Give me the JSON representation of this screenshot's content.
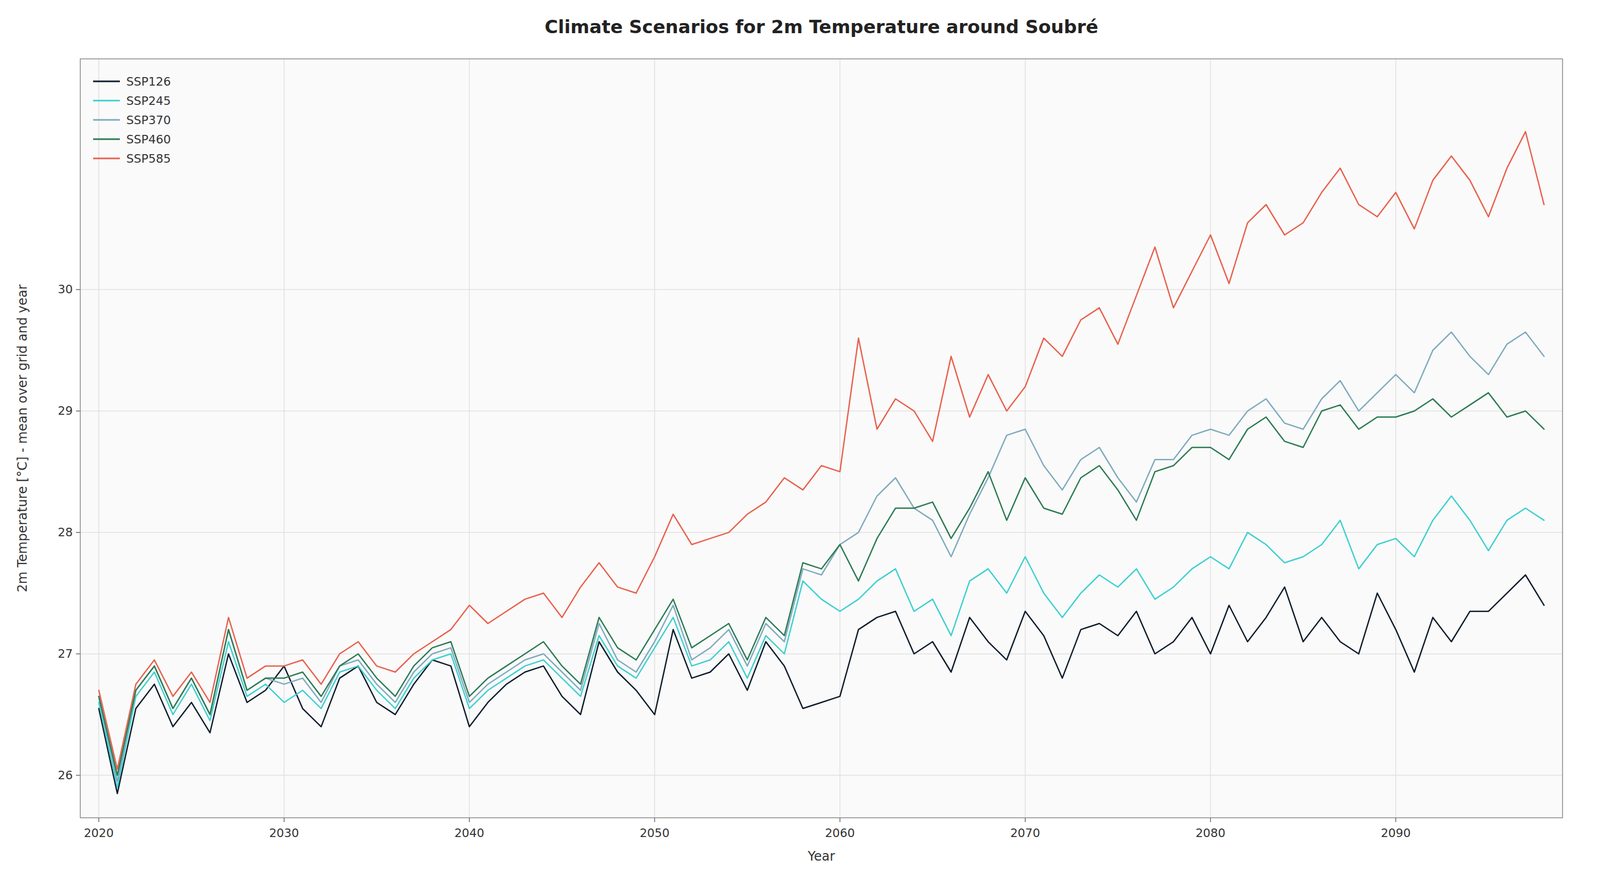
{
  "chart_data": {
    "type": "line",
    "title": "Climate Scenarios for 2m Temperature around Soubré",
    "xlabel": "Year",
    "ylabel": "2m Temperature [°C] - mean over grid and year",
    "x": [
      2020,
      2021,
      2022,
      2023,
      2024,
      2025,
      2026,
      2027,
      2028,
      2029,
      2030,
      2031,
      2032,
      2033,
      2034,
      2035,
      2036,
      2037,
      2038,
      2039,
      2040,
      2041,
      2042,
      2043,
      2044,
      2045,
      2046,
      2047,
      2048,
      2049,
      2050,
      2051,
      2052,
      2053,
      2054,
      2055,
      2056,
      2057,
      2058,
      2059,
      2060,
      2061,
      2062,
      2063,
      2064,
      2065,
      2066,
      2067,
      2068,
      2069,
      2070,
      2071,
      2072,
      2073,
      2074,
      2075,
      2076,
      2077,
      2078,
      2079,
      2080,
      2081,
      2082,
      2083,
      2084,
      2085,
      2086,
      2087,
      2088,
      2089,
      2090,
      2091,
      2092,
      2093,
      2094,
      2095,
      2096,
      2097,
      2098
    ],
    "series": [
      {
        "name": "SSP126",
        "color": "#0d1b2a",
        "values": [
          26.55,
          25.85,
          26.55,
          26.75,
          26.4,
          26.6,
          26.35,
          27.0,
          26.6,
          26.7,
          26.9,
          26.55,
          26.4,
          26.8,
          26.9,
          26.6,
          26.5,
          26.75,
          26.95,
          26.9,
          26.4,
          26.6,
          26.75,
          26.85,
          26.9,
          26.65,
          26.5,
          27.1,
          26.85,
          26.7,
          26.5,
          27.2,
          26.8,
          26.85,
          27.0,
          26.7,
          27.1,
          26.9,
          26.55,
          26.6,
          26.65,
          27.2,
          27.3,
          27.35,
          27.0,
          27.1,
          26.85,
          27.3,
          27.1,
          26.95,
          27.35,
          27.15,
          26.8,
          27.2,
          27.25,
          27.15,
          27.35,
          27.0,
          27.1,
          27.3,
          27.0,
          27.4,
          27.1,
          27.3,
          27.55,
          27.1,
          27.3,
          27.1,
          27.0,
          27.5,
          27.2,
          26.85,
          27.3,
          27.1,
          27.35,
          27.35,
          27.5,
          27.65,
          27.4
        ]
      },
      {
        "name": "SSP245",
        "color": "#3ecfcf",
        "values": [
          26.6,
          25.9,
          26.65,
          26.85,
          26.5,
          26.75,
          26.45,
          27.1,
          26.65,
          26.75,
          26.6,
          26.7,
          26.55,
          26.85,
          26.9,
          26.7,
          26.55,
          26.8,
          26.95,
          27.0,
          26.55,
          26.7,
          26.8,
          26.9,
          26.95,
          26.8,
          26.65,
          27.15,
          26.9,
          26.8,
          27.05,
          27.3,
          26.9,
          26.95,
          27.1,
          26.8,
          27.15,
          27.0,
          27.6,
          27.45,
          27.35,
          27.45,
          27.6,
          27.7,
          27.35,
          27.45,
          27.15,
          27.6,
          27.7,
          27.5,
          27.8,
          27.5,
          27.3,
          27.5,
          27.65,
          27.55,
          27.7,
          27.45,
          27.55,
          27.7,
          27.8,
          27.7,
          28.0,
          27.9,
          27.75,
          27.8,
          27.9,
          28.1,
          27.7,
          27.9,
          27.95,
          27.8,
          28.1,
          28.3,
          28.1,
          27.85,
          28.1,
          28.2,
          28.1
        ]
      },
      {
        "name": "SSP370",
        "color": "#7eaabe",
        "values": [
          26.65,
          25.95,
          26.7,
          26.9,
          26.55,
          26.8,
          26.5,
          27.2,
          26.7,
          26.8,
          26.75,
          26.8,
          26.6,
          26.9,
          26.95,
          26.75,
          26.6,
          26.85,
          27.0,
          27.05,
          26.6,
          26.75,
          26.85,
          26.95,
          27.0,
          26.85,
          26.7,
          27.25,
          26.95,
          26.85,
          27.1,
          27.4,
          26.95,
          27.05,
          27.2,
          26.9,
          27.25,
          27.1,
          27.7,
          27.65,
          27.9,
          28.0,
          28.3,
          28.45,
          28.2,
          28.1,
          27.8,
          28.15,
          28.45,
          28.8,
          28.85,
          28.55,
          28.35,
          28.6,
          28.7,
          28.45,
          28.25,
          28.6,
          28.6,
          28.8,
          28.85,
          28.8,
          29.0,
          29.1,
          28.9,
          28.85,
          29.1,
          29.25,
          29.0,
          29.15,
          29.3,
          29.15,
          29.5,
          29.65,
          29.45,
          29.3,
          29.55,
          29.65,
          29.45
        ]
      },
      {
        "name": "SSP460",
        "color": "#2a7a52",
        "values": [
          26.65,
          26.0,
          26.7,
          26.9,
          26.55,
          26.8,
          26.5,
          27.2,
          26.7,
          26.8,
          26.8,
          26.85,
          26.65,
          26.9,
          27.0,
          26.8,
          26.65,
          26.9,
          27.05,
          27.1,
          26.65,
          26.8,
          26.9,
          27.0,
          27.1,
          26.9,
          26.75,
          27.3,
          27.05,
          26.95,
          27.2,
          27.45,
          27.05,
          27.15,
          27.25,
          26.95,
          27.3,
          27.15,
          27.75,
          27.7,
          27.9,
          27.6,
          27.95,
          28.2,
          28.2,
          28.25,
          27.95,
          28.2,
          28.5,
          28.1,
          28.45,
          28.2,
          28.15,
          28.45,
          28.55,
          28.35,
          28.1,
          28.5,
          28.55,
          28.7,
          28.7,
          28.6,
          28.85,
          28.95,
          28.75,
          28.7,
          29.0,
          29.05,
          28.85,
          28.95,
          28.95,
          29.0,
          29.1,
          28.95,
          29.05,
          29.15,
          28.95,
          29.0,
          28.85
        ]
      },
      {
        "name": "SSP585",
        "color": "#e8604c",
        "values": [
          26.7,
          26.05,
          26.75,
          26.95,
          26.65,
          26.85,
          26.6,
          27.3,
          26.8,
          26.9,
          26.9,
          26.95,
          26.75,
          27.0,
          27.1,
          26.9,
          26.85,
          27.0,
          27.1,
          27.2,
          27.4,
          27.25,
          27.35,
          27.45,
          27.5,
          27.3,
          27.55,
          27.75,
          27.55,
          27.5,
          27.8,
          28.15,
          27.9,
          27.95,
          28.0,
          28.15,
          28.25,
          28.45,
          28.35,
          28.55,
          28.5,
          29.6,
          28.85,
          29.1,
          29.0,
          28.75,
          29.45,
          28.95,
          29.3,
          29.0,
          29.2,
          29.6,
          29.45,
          29.75,
          29.85,
          29.55,
          29.95,
          30.35,
          29.85,
          30.15,
          30.45,
          30.05,
          30.55,
          30.7,
          30.45,
          30.55,
          30.8,
          31.0,
          30.7,
          30.6,
          30.8,
          30.5,
          30.9,
          31.1,
          30.9,
          30.6,
          31.0,
          31.3,
          30.7
        ]
      }
    ],
    "xlim": [
      2019,
      2099
    ],
    "ylim": [
      25.65,
      31.9
    ],
    "xticks": [
      2020,
      2030,
      2040,
      2050,
      2060,
      2070,
      2080,
      2090
    ],
    "yticks": [
      26,
      27,
      28,
      29,
      30
    ],
    "grid": true,
    "legend": "upper left"
  }
}
